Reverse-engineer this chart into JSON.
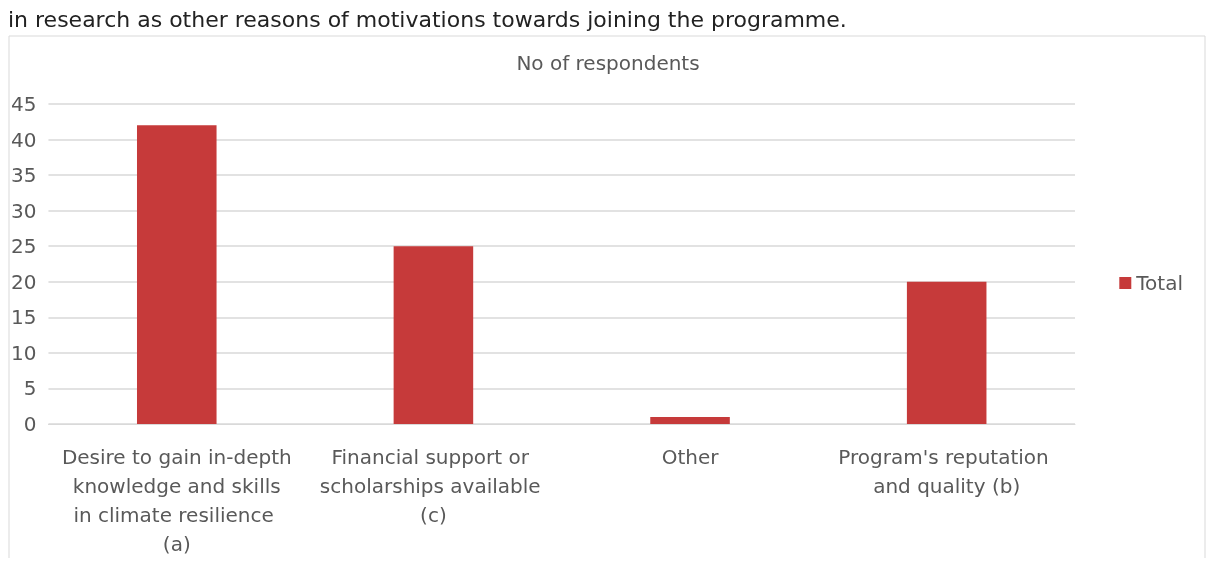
{
  "chart_data": {
    "type": "bar",
    "title": "No of respondents",
    "annotations": [
      "in research as other reasons of motivations towards joining the programme."
    ],
    "categories": [
      "Desire to gain in-depth knowledge and skills in climate resilience (a)",
      "Financial support or scholarships available (c)",
      "Other",
      "Program's reputation and quality (b)"
    ],
    "series": [
      {
        "name": "Total",
        "color": "#c63a3a",
        "values": [
          42,
          25,
          1,
          20
        ]
      }
    ],
    "ylim": [
      0,
      45
    ],
    "yticks": [
      0,
      5,
      10,
      15,
      20,
      25,
      30,
      35,
      40,
      45
    ],
    "grid": "y",
    "legend": "right"
  }
}
